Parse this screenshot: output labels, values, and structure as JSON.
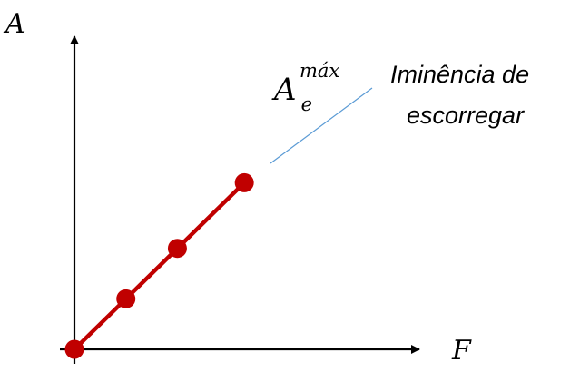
{
  "colors": {
    "series": "#c00000",
    "axis": "#000000",
    "leader": "#5b9bd5"
  },
  "chart_data": {
    "type": "line",
    "xlabel": "F",
    "ylabel": "A",
    "axis_ticks": false,
    "grid": false,
    "series": [
      {
        "x": [
          0,
          1,
          2,
          3.3
        ],
        "y": [
          0,
          1,
          2,
          3.3
        ],
        "markers": true
      }
    ],
    "xlim": [
      0,
      6.7
    ],
    "ylim": [
      0,
      6.2
    ],
    "annotations": [
      {
        "symbol": {
          "base": "A",
          "subscript": "e",
          "superscript": "máx"
        },
        "text_lines": [
          "Iminência de",
          "escorregar"
        ]
      }
    ]
  }
}
